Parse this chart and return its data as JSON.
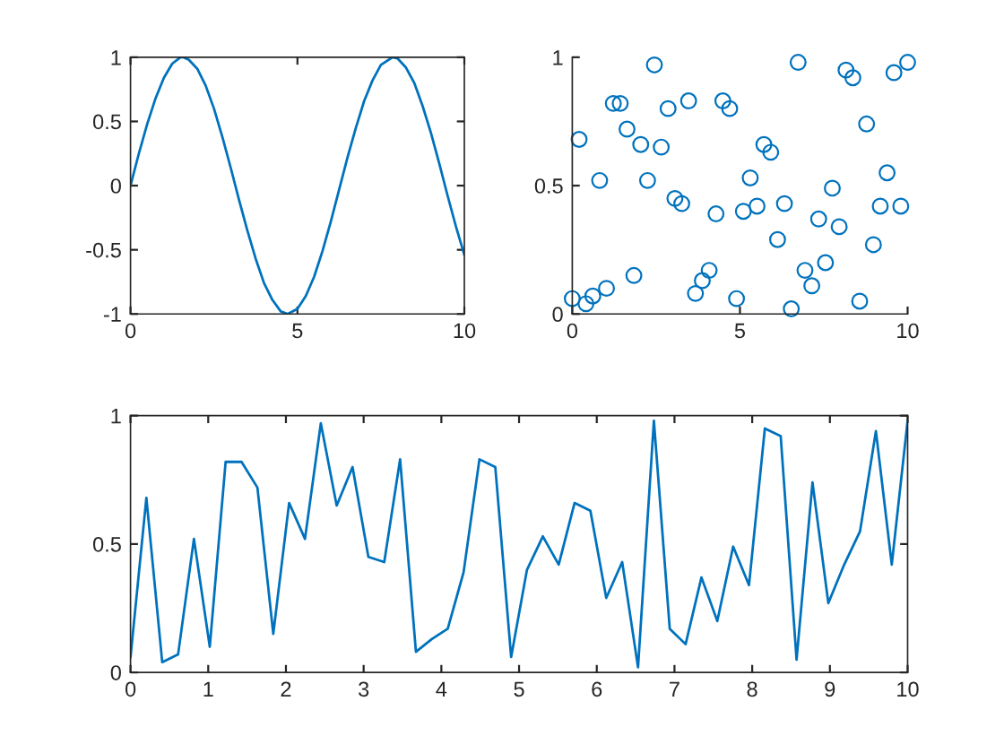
{
  "chart_data": [
    {
      "type": "line",
      "color": "#0072bd",
      "marker": "none",
      "grid": false,
      "xlim": [
        0,
        10
      ],
      "ylim": [
        -1,
        1
      ],
      "xticks": [
        0,
        5,
        10
      ],
      "yticks": [
        -1,
        -0.5,
        0,
        0.5,
        1
      ],
      "x": [
        0,
        0.25,
        0.5,
        0.75,
        1,
        1.25,
        1.5,
        1.57,
        1.75,
        2,
        2.25,
        2.5,
        2.75,
        3,
        3.25,
        3.5,
        3.75,
        4,
        4.25,
        4.5,
        4.71,
        5,
        5.25,
        5.5,
        5.75,
        6,
        6.25,
        6.5,
        6.75,
        7,
        7.25,
        7.5,
        7.85,
        8,
        8.25,
        8.5,
        8.75,
        9,
        9.25,
        9.5,
        9.75,
        10
      ],
      "values": [
        0,
        0.25,
        0.48,
        0.68,
        0.84,
        0.95,
        1.0,
        1,
        0.98,
        0.91,
        0.78,
        0.6,
        0.38,
        0.14,
        -0.11,
        -0.35,
        -0.57,
        -0.76,
        -0.89,
        -0.98,
        -1,
        -0.96,
        -0.86,
        -0.71,
        -0.51,
        -0.28,
        -0.03,
        0.22,
        0.45,
        0.66,
        0.82,
        0.94,
        1,
        0.99,
        0.92,
        0.8,
        0.62,
        0.41,
        0.17,
        -0.08,
        -0.32,
        -0.54
      ]
    },
    {
      "type": "scatter",
      "color": "#0072bd",
      "marker": "circle",
      "grid": false,
      "xlim": [
        0,
        10
      ],
      "ylim": [
        0,
        1
      ],
      "xticks": [
        0,
        5,
        10
      ],
      "yticks": [
        0,
        0.5,
        1
      ],
      "x": [
        0,
        0.204,
        0.408,
        0.612,
        0.816,
        1.02,
        1.224,
        1.429,
        1.633,
        1.837,
        2.041,
        2.245,
        2.449,
        2.653,
        2.857,
        3.061,
        3.265,
        3.469,
        3.673,
        3.878,
        4.082,
        4.286,
        4.49,
        4.694,
        4.898,
        5.102,
        5.306,
        5.51,
        5.714,
        5.918,
        6.122,
        6.327,
        6.531,
        6.735,
        6.939,
        7.143,
        7.347,
        7.551,
        7.755,
        7.959,
        8.163,
        8.367,
        8.571,
        8.776,
        8.98,
        9.184,
        9.388,
        9.592,
        9.796,
        10
      ],
      "values": [
        0.06,
        0.68,
        0.04,
        0.07,
        0.52,
        0.1,
        0.82,
        0.82,
        0.72,
        0.15,
        0.66,
        0.52,
        0.97,
        0.65,
        0.8,
        0.45,
        0.43,
        0.83,
        0.08,
        0.13,
        0.17,
        0.39,
        0.83,
        0.8,
        0.06,
        0.4,
        0.53,
        0.42,
        0.66,
        0.63,
        0.29,
        0.43,
        0.02,
        0.98,
        0.17,
        0.11,
        0.37,
        0.2,
        0.49,
        0.34,
        0.95,
        0.92,
        0.05,
        0.74,
        0.27,
        0.42,
        0.55,
        0.94,
        0.42,
        0.98
      ]
    },
    {
      "type": "line",
      "color": "#0072bd",
      "marker": "none",
      "grid": false,
      "xlim": [
        0,
        10
      ],
      "ylim": [
        0,
        1
      ],
      "xticks": [
        0,
        1,
        2,
        3,
        4,
        5,
        6,
        7,
        8,
        9,
        10
      ],
      "yticks": [
        0,
        0.5,
        1
      ],
      "x": [
        0,
        0.204,
        0.408,
        0.612,
        0.816,
        1.02,
        1.224,
        1.429,
        1.633,
        1.837,
        2.041,
        2.245,
        2.449,
        2.653,
        2.857,
        3.061,
        3.265,
        3.469,
        3.673,
        3.878,
        4.082,
        4.286,
        4.49,
        4.694,
        4.898,
        5.102,
        5.306,
        5.51,
        5.714,
        5.918,
        6.122,
        6.327,
        6.531,
        6.735,
        6.939,
        7.143,
        7.347,
        7.551,
        7.755,
        7.959,
        8.163,
        8.367,
        8.571,
        8.776,
        8.98,
        9.184,
        9.388,
        9.592,
        9.796,
        10
      ],
      "values": [
        0.06,
        0.68,
        0.04,
        0.07,
        0.52,
        0.1,
        0.82,
        0.82,
        0.72,
        0.15,
        0.66,
        0.52,
        0.97,
        0.65,
        0.8,
        0.45,
        0.43,
        0.83,
        0.08,
        0.13,
        0.17,
        0.39,
        0.83,
        0.8,
        0.06,
        0.4,
        0.53,
        0.42,
        0.66,
        0.63,
        0.29,
        0.43,
        0.02,
        0.98,
        0.17,
        0.11,
        0.37,
        0.2,
        0.49,
        0.34,
        0.95,
        0.92,
        0.05,
        0.74,
        0.27,
        0.42,
        0.55,
        0.94,
        0.42,
        0.98
      ]
    }
  ]
}
